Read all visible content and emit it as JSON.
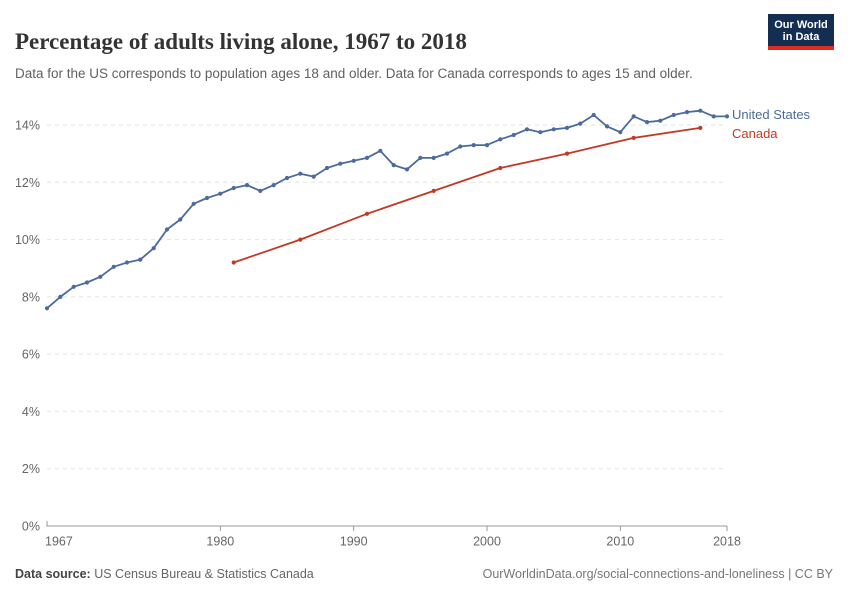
{
  "logo": {
    "line1": "Our World",
    "line2": "in Data",
    "bg_color": "#142E52",
    "stripe_color": "#E02B20"
  },
  "header": {
    "title": "Percentage of adults living alone, 1967 to 2018",
    "subtitle": "Data for the US corresponds to population ages 18 and older. Data for Canada corresponds to ages 15 and older."
  },
  "chart_data": {
    "type": "line",
    "title": "Percentage of adults living alone, 1967 to 2018",
    "xlabel": "",
    "ylabel": "",
    "xlim": [
      1967,
      2018
    ],
    "ylim": [
      0,
      14.8
    ],
    "grid": "horizontal-dashed",
    "legend_position": "end-of-line labels, right side",
    "x_ticks": [
      1967,
      1980,
      1990,
      2000,
      2010,
      2018
    ],
    "x_tick_labels": [
      "1967",
      "1980",
      "1990",
      "2000",
      "2010",
      "2018"
    ],
    "y_ticks": [
      0,
      2,
      4,
      6,
      8,
      10,
      12,
      14
    ],
    "y_tick_labels": [
      "0%",
      "2%",
      "4%",
      "6%",
      "8%",
      "10%",
      "12%",
      "14%"
    ],
    "series": [
      {
        "name": "United States",
        "color": "#4C6A9C",
        "x": [
          1967,
          1968,
          1969,
          1970,
          1971,
          1972,
          1973,
          1974,
          1975,
          1976,
          1977,
          1978,
          1979,
          1980,
          1981,
          1982,
          1983,
          1984,
          1985,
          1986,
          1987,
          1988,
          1989,
          1990,
          1991,
          1992,
          1993,
          1994,
          1995,
          1996,
          1997,
          1998,
          1999,
          2000,
          2001,
          2002,
          2003,
          2004,
          2005,
          2006,
          2007,
          2008,
          2009,
          2010,
          2011,
          2012,
          2013,
          2014,
          2015,
          2016,
          2017,
          2018
        ],
        "values": [
          7.6,
          8.0,
          8.35,
          8.5,
          8.7,
          9.05,
          9.2,
          9.3,
          9.7,
          10.35,
          10.7,
          11.25,
          11.45,
          11.6,
          11.8,
          11.9,
          11.7,
          11.9,
          12.15,
          12.3,
          12.2,
          12.5,
          12.65,
          12.75,
          12.85,
          13.1,
          12.6,
          12.45,
          12.85,
          12.85,
          13.0,
          13.25,
          13.3,
          13.3,
          13.5,
          13.65,
          13.85,
          13.75,
          13.85,
          13.9,
          14.05,
          14.35,
          13.95,
          13.75,
          14.3,
          14.1,
          14.15,
          14.35,
          14.45,
          14.5,
          14.3,
          14.3
        ]
      },
      {
        "name": "Canada",
        "color": "#C03A25",
        "x": [
          1981,
          1986,
          1991,
          1996,
          2001,
          2006,
          2011,
          2016
        ],
        "values": [
          9.2,
          10.0,
          10.9,
          11.7,
          12.5,
          13.0,
          13.55,
          13.9
        ]
      }
    ]
  },
  "footer": {
    "source_label": "Data source:",
    "source_text": " US Census Bureau & Statistics Canada",
    "credit": "OurWorldinData.org/social-connections-and-loneliness | CC BY"
  }
}
